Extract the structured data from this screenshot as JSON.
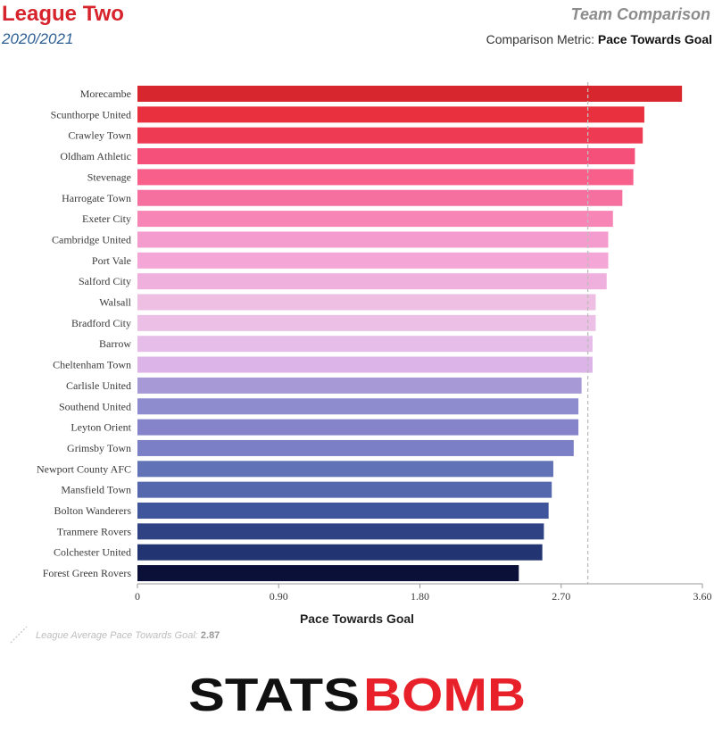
{
  "header": {
    "league": "League Two",
    "season": "2020/2021",
    "comparison_title": "Team Comparison",
    "metric_prefix": "Comparison Metric:",
    "metric_name": "Pace Towards Goal"
  },
  "chart_data": {
    "type": "bar",
    "orientation": "horizontal",
    "xlabel": "Pace Towards Goal",
    "xlim": [
      0,
      3.6
    ],
    "xticks": [
      "0",
      "0.90",
      "1.80",
      "2.70",
      "3.60"
    ],
    "xtick_values": [
      0,
      0.9,
      1.8,
      2.7,
      3.6
    ],
    "reference_line": {
      "value": 2.87,
      "style": "dashed"
    },
    "categories": [
      "Morecambe",
      "Scunthorpe United",
      "Crawley Town",
      "Oldham Athletic",
      "Stevenage",
      "Harrogate Town",
      "Exeter City",
      "Cambridge United",
      "Port Vale",
      "Salford City",
      "Walsall",
      "Bradford City",
      "Barrow",
      "Cheltenham Town",
      "Carlisle United",
      "Southend United",
      "Leyton Orient",
      "Grimsby Town",
      "Newport County AFC",
      "Mansfield Town",
      "Bolton Wanderers",
      "Tranmere Rovers",
      "Colchester United",
      "Forest Green Rovers"
    ],
    "values": [
      3.47,
      3.23,
      3.22,
      3.17,
      3.16,
      3.09,
      3.03,
      3.0,
      3.0,
      2.99,
      2.92,
      2.92,
      2.9,
      2.9,
      2.83,
      2.81,
      2.81,
      2.78,
      2.65,
      2.64,
      2.62,
      2.59,
      2.58,
      2.43
    ],
    "colors": [
      "#d7262d",
      "#e8303e",
      "#ef3a54",
      "#f5507a",
      "#f85f8b",
      "#f56f9f",
      "#f785b5",
      "#f59cce",
      "#f4a6d6",
      "#f0b0dd",
      "#eebee3",
      "#ecc0e6",
      "#e6bde8",
      "#dcb4e8",
      "#a799d6",
      "#8f8bcf",
      "#8584cb",
      "#7a7fc6",
      "#6172b6",
      "#5568ae",
      "#3f569c",
      "#2f4384",
      "#223572",
      "#0b1038"
    ]
  },
  "footnote": {
    "label": "League Average Pace Towards Goal:",
    "value": "2.87"
  },
  "logo": {
    "text_left": "STATS",
    "text_right": "BOMB",
    "color_left": "#111111",
    "color_right": "#e8202a"
  }
}
